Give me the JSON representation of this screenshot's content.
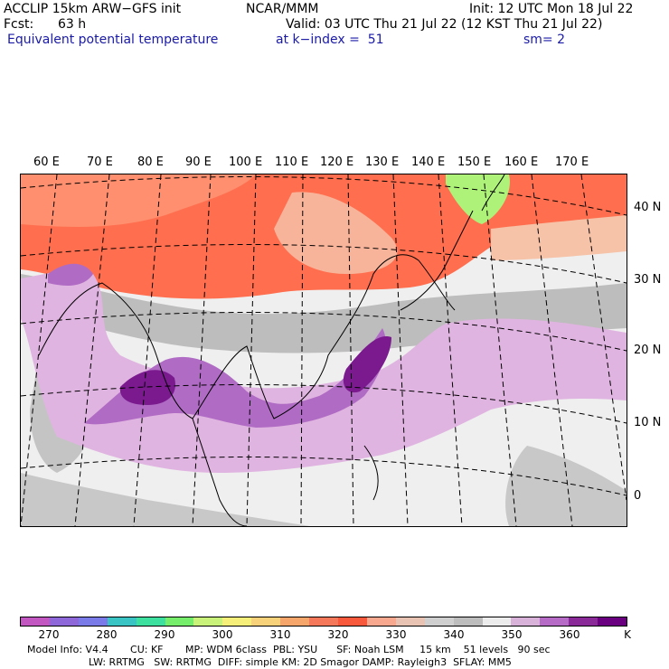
{
  "header": {
    "model": "ACCLIP 15km ARW−GFS init",
    "center": "NCAR/MMM",
    "init": "Init: 12 UTC Mon 18 Jul 22",
    "fcst_label": "Fcst:",
    "fcst_value": "63 h",
    "valid": "Valid: 03 UTC Thu 21 Jul 22 (12 KST Thu 21 Jul 22)",
    "field": "Equivalent potential temperature",
    "level": "at k−index =  51",
    "smooth": "sm= 2"
  },
  "map": {
    "lon_labels": [
      "60 E",
      "70 E",
      "80 E",
      "90 E",
      "100 E",
      "110 E",
      "120 E",
      "130 E",
      "140 E",
      "150 E",
      "160 E",
      "170 E"
    ],
    "lat_labels": [
      "40 N",
      "30 N",
      "20 N",
      "10 N",
      "0"
    ],
    "colors": {
      "water": "#efefef",
      "land_warm": "#ff6e4e",
      "land_hot": "#ff8f6e",
      "grey": "#bdbdbd",
      "purple_light": "#e0b4e0",
      "purple_mid": "#b06cc4",
      "purple_dark": "#7a1a8e",
      "green": "#aef27a"
    }
  },
  "colorbar": {
    "unit": "K",
    "labels": [
      "270",
      "280",
      "290",
      "300",
      "310",
      "320",
      "330",
      "340",
      "350",
      "360"
    ],
    "colors": [
      "#c257c2",
      "#8e67d8",
      "#7a7ae8",
      "#3bc4c4",
      "#3ee0a0",
      "#76ee6c",
      "#c8f27a",
      "#f6f07a",
      "#f8d27a",
      "#f6a66a",
      "#f6785a",
      "#f8583c",
      "#f8a88e",
      "#e8c2b2",
      "#cfcfcf",
      "#bdbdbd",
      "#ececec",
      "#d8b2d8",
      "#b66cc6",
      "#8a2a98",
      "#6a0080"
    ]
  },
  "footer": {
    "line1": "Model Info: V4.4       CU: KF       MP: WDM 6class  PBL: YSU      SF: Noah LSM     15 km    51 levels   90 sec",
    "line2": "LW: RRTMG   SW: RRTMG  DIFF: simple KM: 2D Smagor DAMP: Rayleigh3  SFLAY: MM5"
  }
}
